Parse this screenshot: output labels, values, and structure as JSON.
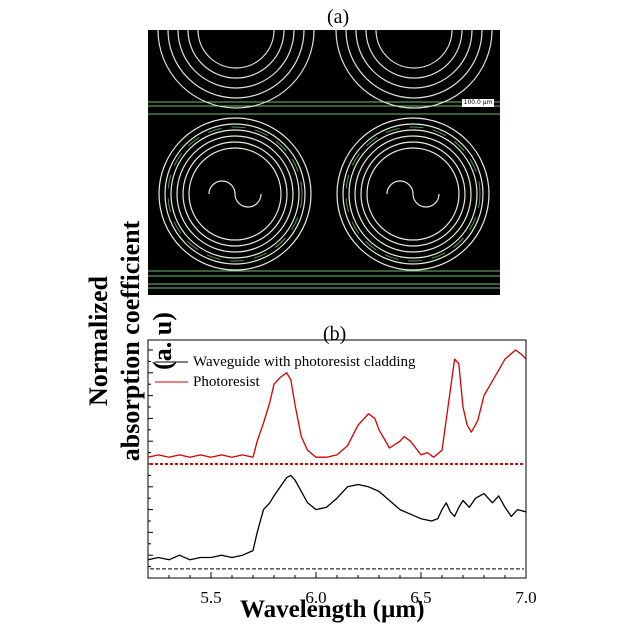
{
  "panel_a": {
    "label": "(a)",
    "scale_label": "100.0 µm"
  },
  "panel_b": {
    "label": "(b)"
  },
  "chart_data": {
    "type": "line",
    "title": "",
    "xlabel": "Wavelength (µm)",
    "ylabel": "Normalized absorption coefficient (a. u)",
    "xlim": [
      5.2,
      7.0
    ],
    "xticks": [
      "5.5",
      "6.0",
      "6.5",
      "7.0"
    ],
    "xtick_values": [
      5.5,
      6.0,
      6.5,
      7.0
    ],
    "ylim": [
      0,
      1
    ],
    "grid": false,
    "legend_position": "top-left",
    "series": [
      {
        "name": "Waveguide with photoresist cladding",
        "color": "#000000",
        "baseline": 0.04,
        "x": [
          5.2,
          5.25,
          5.3,
          5.35,
          5.4,
          5.45,
          5.5,
          5.55,
          5.6,
          5.65,
          5.7,
          5.72,
          5.75,
          5.78,
          5.8,
          5.83,
          5.86,
          5.88,
          5.9,
          5.93,
          5.96,
          6.0,
          6.05,
          6.1,
          6.15,
          6.2,
          6.25,
          6.3,
          6.35,
          6.4,
          6.45,
          6.5,
          6.55,
          6.58,
          6.6,
          6.62,
          6.64,
          6.66,
          6.68,
          6.7,
          6.73,
          6.76,
          6.8,
          6.84,
          6.87,
          6.9,
          6.93,
          6.96,
          7.0
        ],
        "values": [
          0.08,
          0.09,
          0.08,
          0.1,
          0.08,
          0.09,
          0.09,
          0.1,
          0.09,
          0.1,
          0.12,
          0.2,
          0.3,
          0.33,
          0.36,
          0.4,
          0.44,
          0.45,
          0.43,
          0.38,
          0.33,
          0.3,
          0.31,
          0.35,
          0.4,
          0.41,
          0.4,
          0.38,
          0.34,
          0.3,
          0.28,
          0.26,
          0.25,
          0.26,
          0.3,
          0.33,
          0.29,
          0.27,
          0.31,
          0.34,
          0.31,
          0.35,
          0.37,
          0.33,
          0.36,
          0.31,
          0.27,
          0.3,
          0.29
        ]
      },
      {
        "name": "Photoresist",
        "color": "#d40000",
        "baseline": 0.5,
        "x": [
          5.2,
          5.25,
          5.3,
          5.35,
          5.4,
          5.45,
          5.5,
          5.55,
          5.6,
          5.65,
          5.7,
          5.72,
          5.75,
          5.78,
          5.8,
          5.83,
          5.86,
          5.88,
          5.9,
          5.93,
          5.96,
          6.0,
          6.05,
          6.1,
          6.15,
          6.2,
          6.25,
          6.28,
          6.3,
          6.35,
          6.4,
          6.42,
          6.45,
          6.5,
          6.53,
          6.56,
          6.6,
          6.63,
          6.66,
          6.68,
          6.7,
          6.72,
          6.74,
          6.77,
          6.8,
          6.85,
          6.9,
          6.95,
          6.98,
          7.0
        ],
        "values": [
          0.53,
          0.54,
          0.53,
          0.54,
          0.53,
          0.54,
          0.53,
          0.54,
          0.53,
          0.54,
          0.53,
          0.6,
          0.68,
          0.77,
          0.85,
          0.88,
          0.9,
          0.87,
          0.76,
          0.62,
          0.56,
          0.53,
          0.53,
          0.54,
          0.58,
          0.67,
          0.72,
          0.7,
          0.65,
          0.57,
          0.6,
          0.62,
          0.6,
          0.54,
          0.55,
          0.53,
          0.56,
          0.76,
          0.96,
          0.94,
          0.75,
          0.67,
          0.64,
          0.69,
          0.8,
          0.88,
          0.96,
          1.0,
          0.98,
          0.96
        ]
      }
    ]
  }
}
